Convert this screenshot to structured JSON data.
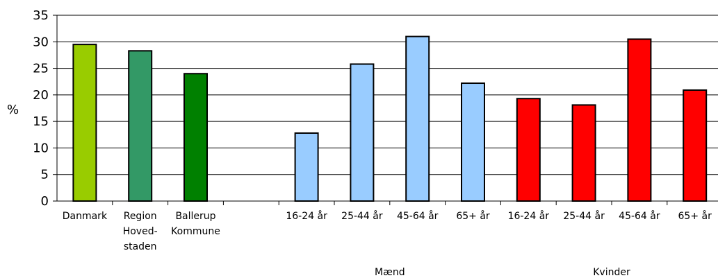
{
  "chart_data": {
    "type": "bar",
    "title": "",
    "xlabel": "",
    "ylabel": "%",
    "ylim": [
      0,
      35
    ],
    "yticks": [
      "0",
      "5",
      "10",
      "15",
      "20",
      "25",
      "30",
      "35"
    ],
    "grid": true,
    "legend": "none",
    "categories": [
      {
        "label": [
          "Danmark"
        ],
        "value": 29.5,
        "color": "#99cc00"
      },
      {
        "label": [
          "Region",
          "Hoved-",
          "staden"
        ],
        "value": 28.3,
        "color": "#339966"
      },
      {
        "label": [
          "Ballerup",
          "Kommune"
        ],
        "value": 24.0,
        "color": "#008000"
      },
      {
        "label": [
          ""
        ],
        "value": null,
        "color": ""
      },
      {
        "label": [
          "16-24 år"
        ],
        "value": 12.8,
        "color": "#99ccff"
      },
      {
        "label": [
          "25-44 år"
        ],
        "value": 25.8,
        "color": "#99ccff"
      },
      {
        "label": [
          "45-64 år"
        ],
        "value": 31.0,
        "color": "#99ccff"
      },
      {
        "label": [
          "65+ år"
        ],
        "value": 22.2,
        "color": "#99ccff"
      },
      {
        "label": [
          "16-24 år"
        ],
        "value": 19.3,
        "color": "#ff0000"
      },
      {
        "label": [
          "25-44 år"
        ],
        "value": 18.1,
        "color": "#ff0000"
      },
      {
        "label": [
          "45-64 år"
        ],
        "value": 30.5,
        "color": "#ff0000"
      },
      {
        "label": [
          "65+ år"
        ],
        "value": 20.9,
        "color": "#ff0000"
      }
    ],
    "groups": [
      {
        "label": "Mænd",
        "from": 4,
        "to": 7
      },
      {
        "label": "Kvinder",
        "from": 8,
        "to": 11
      }
    ]
  }
}
